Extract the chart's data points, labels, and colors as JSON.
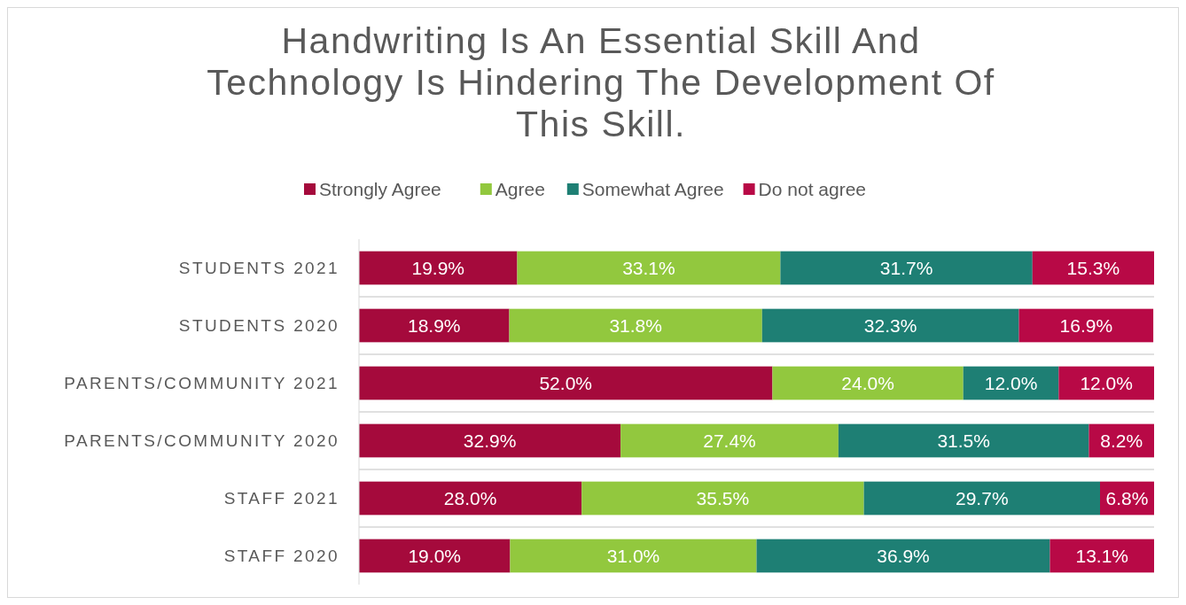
{
  "chart_data": {
    "type": "bar",
    "orientation": "horizontal",
    "stacked": true,
    "title": "Handwriting Is An Essential Skill And Technology Is Hindering The Development Of This Skill.",
    "categories": [
      "STUDENTS 2021",
      "STUDENTS 2020",
      "PARENTS/COMMUNITY 2021",
      "PARENTS/COMMUNITY 2020",
      "STAFF 2021",
      "STAFF 2020"
    ],
    "series": [
      {
        "name": "Strongly Agree",
        "color": "#a50a3c",
        "values": [
          19.9,
          18.9,
          52.0,
          32.9,
          28.0,
          19.0
        ],
        "value_labels": [
          "19.9%",
          "18.9%",
          "52.0%",
          "32.9%",
          "28.0%",
          "19.0%"
        ]
      },
      {
        "name": "Agree",
        "color": "#92c83e",
        "values": [
          33.1,
          31.8,
          24.0,
          27.4,
          35.5,
          31.0
        ],
        "value_labels": [
          "33.1%",
          "31.8%",
          "24.0%",
          "27.4%",
          "35.5%",
          "31.0%"
        ]
      },
      {
        "name": "Somewhat Agree",
        "color": "#1e7f74",
        "values": [
          31.7,
          32.3,
          12.0,
          31.5,
          29.7,
          36.9
        ],
        "value_labels": [
          "31.7%",
          "32.3%",
          "12.0%",
          "31.5%",
          "29.7%",
          "36.9%"
        ]
      },
      {
        "name": "Do not agree",
        "color": "#b80946",
        "values": [
          15.3,
          16.9,
          12.0,
          8.2,
          6.8,
          13.1
        ],
        "value_labels": [
          "15.3%",
          "16.9%",
          "12.0%",
          "8.2%",
          "6.8%",
          "13.1%"
        ]
      }
    ],
    "xlim": [
      0,
      100
    ],
    "tick_labels": "y",
    "legend": "top"
  }
}
